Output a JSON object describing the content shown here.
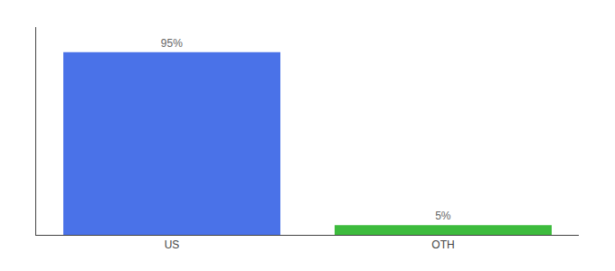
{
  "chart_data": {
    "type": "bar",
    "categories": [
      "US",
      "OTH"
    ],
    "values": [
      95,
      5
    ],
    "value_labels": [
      "95%",
      "5%"
    ],
    "data_labels": true,
    "colors": [
      "#4a72e8",
      "#3dbb3d"
    ],
    "ylim": [
      0,
      108
    ],
    "grid": false,
    "tick_labels": "x"
  }
}
